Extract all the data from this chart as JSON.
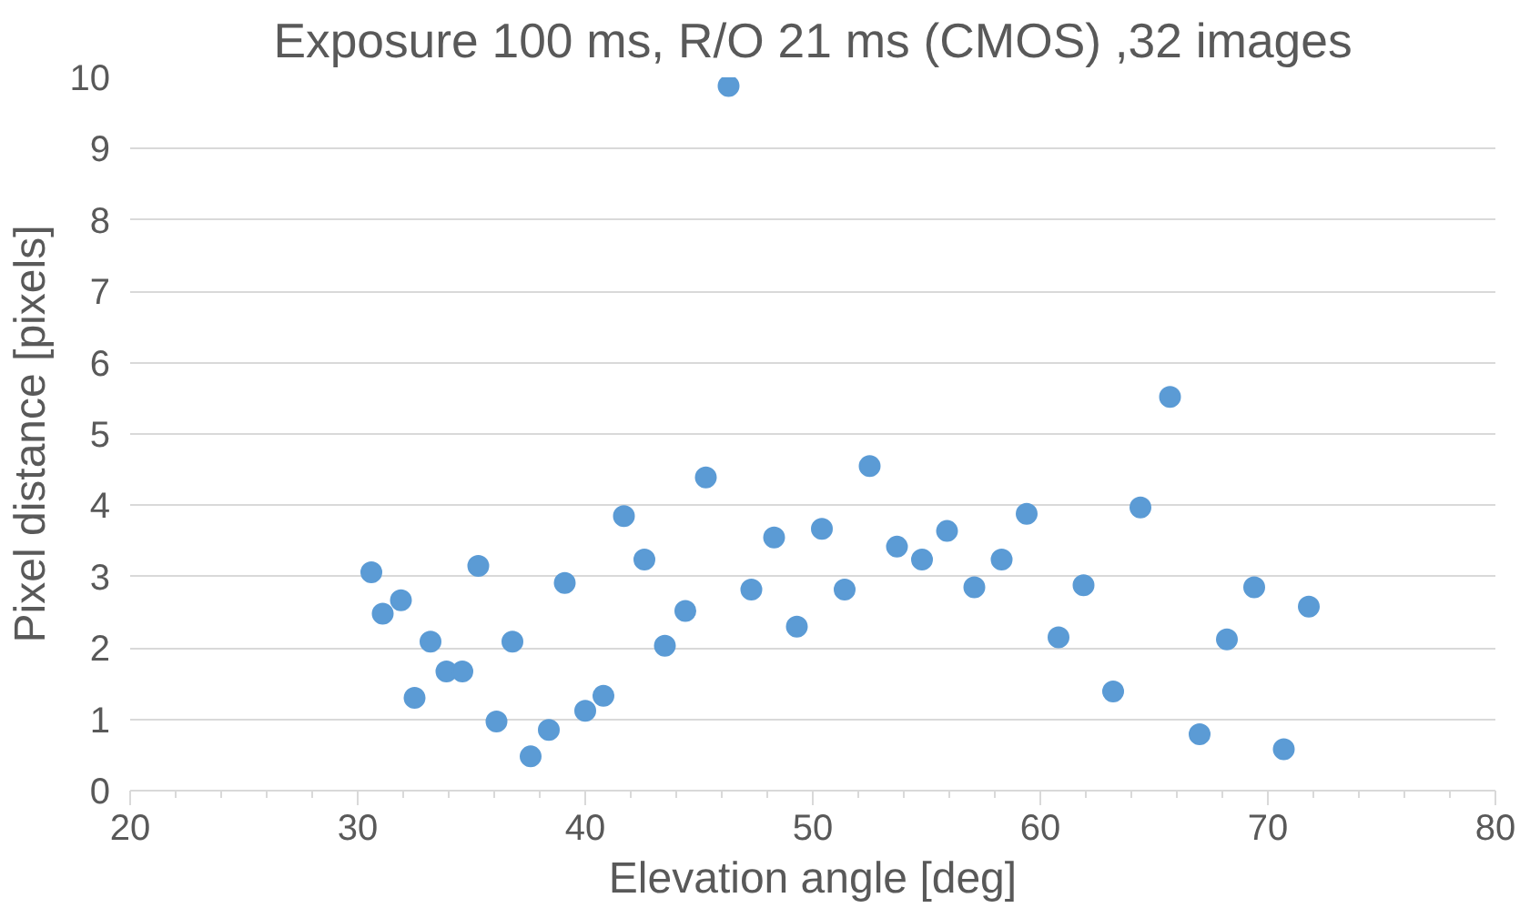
{
  "chart_data": {
    "type": "scatter",
    "title": "Exposure 100 ms, R/O 21 ms (CMOS) ,32 images",
    "xlabel": "Elevation angle [deg]",
    "ylabel": "Pixel distance [pixels]",
    "x": [
      30.6,
      31.1,
      31.9,
      32.5,
      33.2,
      33.9,
      34.6,
      35.3,
      36.1,
      36.8,
      37.6,
      38.4,
      39.1,
      40.0,
      40.8,
      41.7,
      42.6,
      43.5,
      44.4,
      45.3,
      46.3,
      47.3,
      48.3,
      49.3,
      50.4,
      51.4,
      52.5,
      53.7,
      54.8,
      55.9,
      57.1,
      58.3,
      59.4,
      60.8,
      61.9,
      63.2,
      64.4,
      65.7,
      67.0,
      68.2,
      69.4,
      70.7,
      71.8
    ],
    "series": [
      {
        "color": "#5b9bd5",
        "values": [
          3.06,
          2.48,
          2.67,
          1.3,
          2.09,
          1.67,
          1.67,
          3.15,
          0.97,
          2.09,
          0.48,
          0.85,
          2.91,
          1.12,
          1.33,
          3.85,
          3.24,
          2.03,
          2.52,
          4.39,
          9.88,
          2.82,
          3.55,
          2.3,
          3.67,
          2.82,
          4.55,
          3.42,
          3.24,
          3.64,
          2.85,
          3.24,
          3.88,
          2.15,
          2.88,
          1.39,
          3.97,
          5.52,
          0.79,
          2.12,
          2.85,
          0.58,
          2.58
        ]
      }
    ],
    "xlim": [
      20,
      80
    ],
    "xticks": [
      20,
      30,
      40,
      50,
      60,
      70,
      80
    ],
    "ylim": [
      0,
      10
    ],
    "yticks": [
      0,
      1,
      2,
      3,
      4,
      5,
      6,
      7,
      8,
      9,
      10
    ],
    "grid": "y",
    "marker": "circle"
  }
}
